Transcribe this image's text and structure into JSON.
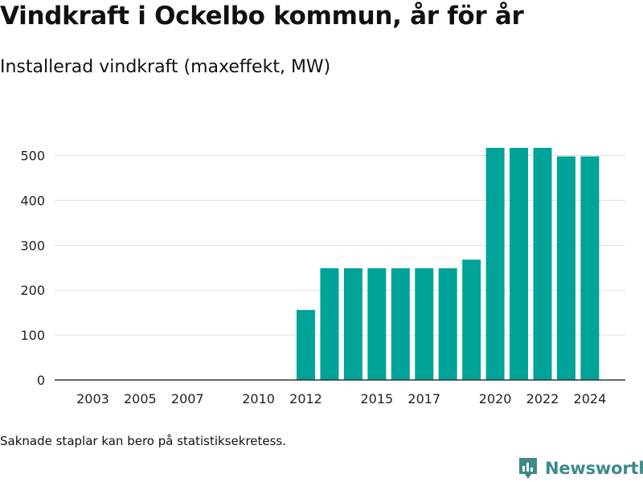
{
  "header": {
    "title": "Vindkraft i Ockelbo kommun, år för år",
    "subtitle": "Installerad vindkraft (maxeffekt, MW)"
  },
  "footer": {
    "note": "Saknade staplar kan bero på statistiksekretess.",
    "brand": "Newsworthy"
  },
  "colors": {
    "bar": "#00a398",
    "grid": "#dddddd",
    "axis": "#333333",
    "brand": "#3d8a87"
  },
  "chart_data": {
    "type": "bar",
    "title": "Vindkraft i Ockelbo kommun, år för år",
    "subtitle": "Installerad vindkraft (maxeffekt, MW)",
    "categories": [
      "2002",
      "2003",
      "2004",
      "2005",
      "2006",
      "2007",
      "2008",
      "2009",
      "2010",
      "2011",
      "2012",
      "2013",
      "2014",
      "2015",
      "2016",
      "2017",
      "2018",
      "2019",
      "2020",
      "2021",
      "2022",
      "2023",
      "2024"
    ],
    "values": [
      0,
      0,
      0,
      0,
      0,
      0,
      0,
      0,
      0,
      0,
      156,
      249,
      249,
      249,
      249,
      249,
      249,
      268,
      517,
      517,
      517,
      498,
      498
    ],
    "xticks": [
      "2003",
      "2005",
      "2007",
      "2010",
      "2012",
      "2015",
      "2017",
      "2020",
      "2022",
      "2024"
    ],
    "yticks": [
      0,
      100,
      200,
      300,
      400,
      500
    ],
    "ylim": [
      0,
      560
    ],
    "grid": true,
    "legend": "none"
  }
}
